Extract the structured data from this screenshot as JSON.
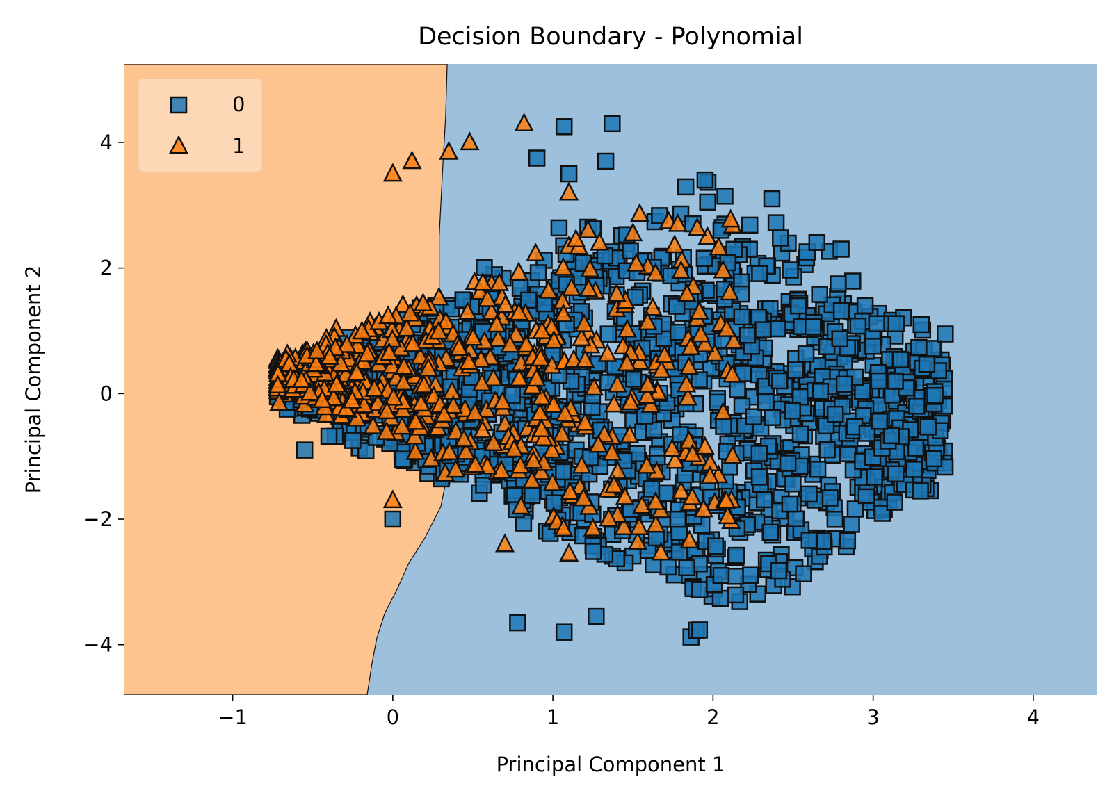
{
  "chart_data": {
    "type": "scatter",
    "title": "Decision Boundary - Polynomial",
    "xlabel": "Principal Component 1",
    "ylabel": "Principal Component 2",
    "xlim": [
      -1.68,
      4.4
    ],
    "ylim": [
      -4.8,
      5.25
    ],
    "xticks": [
      -1,
      0,
      1,
      2,
      3,
      4
    ],
    "xtick_labels": [
      "−1",
      "0",
      "1",
      "2",
      "3",
      "4"
    ],
    "yticks": [
      -4,
      -2,
      0,
      2,
      4
    ],
    "ytick_labels": [
      "−4",
      "−2",
      "0",
      "2",
      "4"
    ],
    "grid": false,
    "legend_position": "top-left",
    "regions": [
      {
        "class": "1",
        "color": "#fdc48f",
        "description": "region left of the decision boundary"
      },
      {
        "class": "0",
        "color": "#9dc0dd",
        "description": "region right of the decision boundary"
      }
    ],
    "boundary": [
      [
        0.34,
        5.25
      ],
      [
        0.33,
        4.4
      ],
      [
        0.31,
        3.5
      ],
      [
        0.29,
        2.5
      ],
      [
        0.29,
        1.5
      ],
      [
        0.3,
        0.5
      ],
      [
        0.32,
        -0.5
      ],
      [
        0.34,
        -1.3
      ],
      [
        0.3,
        -1.8
      ],
      [
        0.2,
        -2.3
      ],
      [
        0.1,
        -2.7
      ],
      [
        0.03,
        -3.1
      ],
      [
        -0.05,
        -3.5
      ],
      [
        -0.1,
        -3.9
      ],
      [
        -0.13,
        -4.3
      ],
      [
        -0.16,
        -4.8
      ]
    ],
    "series": [
      {
        "name": "0",
        "marker": "square",
        "color": "#1f77b4",
        "edge_color": "#111111",
        "cloud_points": 1500,
        "extent_x": [
          -0.72,
          3.45
        ],
        "extent_y": [
          -3.8,
          4.3
        ],
        "values": [
          [
            1.37,
            4.3
          ],
          [
            1.07,
            4.25
          ],
          [
            0.9,
            3.75
          ],
          [
            1.33,
            3.7
          ],
          [
            1.1,
            3.5
          ],
          [
            1.95,
            3.4
          ],
          [
            2.05,
            2.6
          ],
          [
            2.8,
            2.3
          ],
          [
            3.45,
            0.95
          ],
          [
            3.3,
            1.1
          ],
          [
            2.95,
            1.4
          ],
          [
            2.15,
            -2.15
          ],
          [
            2.05,
            -2.9
          ],
          [
            0.78,
            -3.65
          ],
          [
            1.07,
            -3.8
          ],
          [
            1.27,
            -3.55
          ],
          [
            -0.72,
            -0.05
          ],
          [
            0.0,
            -2.0
          ],
          [
            -0.55,
            -0.9
          ],
          [
            2.6,
            -1.6
          ]
        ]
      },
      {
        "name": "1",
        "marker": "triangle",
        "color": "#ff7f0e",
        "edge_color": "#111111",
        "cloud_points": 650,
        "extent_x": [
          -0.72,
          2.15
        ],
        "extent_y": [
          -2.6,
          4.3
        ],
        "values": [
          [
            0.82,
            4.3
          ],
          [
            0.48,
            4.0
          ],
          [
            0.35,
            3.85
          ],
          [
            0.12,
            3.7
          ],
          [
            0.0,
            3.5
          ],
          [
            1.1,
            3.2
          ],
          [
            1.78,
            2.7
          ],
          [
            1.5,
            2.55
          ],
          [
            1.8,
            1.95
          ],
          [
            2.12,
            0.3
          ],
          [
            1.95,
            -0.85
          ],
          [
            1.1,
            -2.55
          ],
          [
            0.7,
            -2.4
          ],
          [
            0.0,
            -1.7
          ],
          [
            -0.71,
            -0.15
          ],
          [
            0.8,
            -1.8
          ],
          [
            1.25,
            -2.15
          ],
          [
            1.45,
            -1.65
          ]
        ]
      }
    ]
  }
}
